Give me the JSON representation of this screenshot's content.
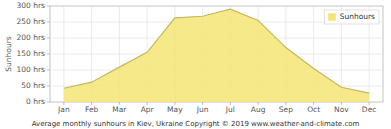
{
  "chart_data": {
    "type": "area",
    "title": "Average monthly sunhours in Kiev, Ukraine   Copyright © 2019 www.weather-and-climate.com",
    "categories": [
      "Jan",
      "Feb",
      "Mar",
      "Apr",
      "May",
      "Jun",
      "Jul",
      "Aug",
      "Sep",
      "Oct",
      "Nov",
      "Dec"
    ],
    "series": [
      {
        "name": "Sunhours",
        "color": "#f5e575",
        "values": [
          43,
          62,
          109,
          155,
          263,
          268,
          290,
          255,
          170,
          105,
          46,
          28
        ]
      }
    ],
    "ylabel": "Sunhours",
    "ylim": [
      0,
      300
    ],
    "yticks": [
      {
        "value": 0,
        "label": "0 hrs"
      },
      {
        "value": 50,
        "label": "50 hrs"
      },
      {
        "value": 100,
        "label": "100 hrs"
      },
      {
        "value": 150,
        "label": "150 hrs"
      },
      {
        "value": 200,
        "label": "200 hrs"
      },
      {
        "value": 250,
        "label": "250 hrs"
      },
      {
        "value": 300,
        "label": "300 hrs"
      }
    ],
    "grid": true,
    "legend": "upper right"
  }
}
